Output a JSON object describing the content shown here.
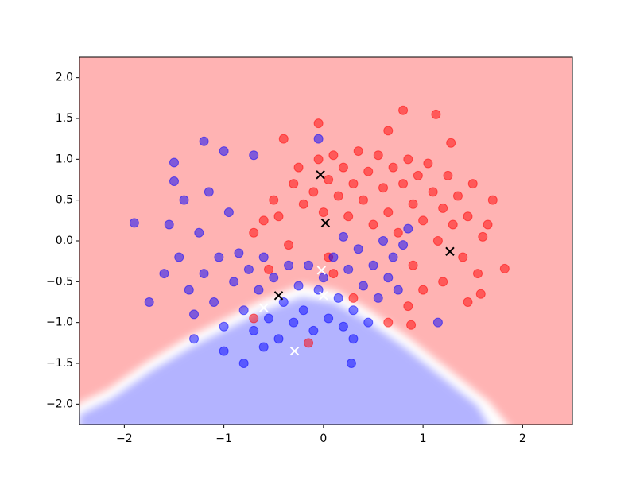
{
  "chart_data": {
    "type": "scatter",
    "xlim": [
      -2.45,
      2.5
    ],
    "ylim": [
      -2.25,
      2.25
    ],
    "xticks": [
      {
        "value": -2,
        "label": "−2"
      },
      {
        "value": -1,
        "label": "−1"
      },
      0,
      1,
      2
    ],
    "yticks": [
      {
        "value": 2,
        "label": "2.0"
      },
      {
        "value": 1.5,
        "label": "1.5"
      },
      {
        "value": 1,
        "label": "1.0"
      },
      {
        "value": 0.5,
        "label": "0.5"
      },
      {
        "value": 0,
        "label": "0.0"
      },
      {
        "value": -0.5,
        "label": "−0.5"
      },
      {
        "value": -1,
        "label": "−1.0"
      },
      {
        "value": -1.5,
        "label": "−1.5"
      },
      {
        "value": -2,
        "label": "−2.0"
      }
    ],
    "grid": false,
    "series": [
      {
        "color": "#ff0000",
        "marker": "o",
        "x": [
          0.8,
          1.13,
          -0.05,
          0.65,
          1.28,
          -0.4,
          1.82,
          1.65,
          1.7,
          1.58,
          1.45,
          0.88,
          0.65,
          0.3,
          -0.15,
          -0.7,
          0.1,
          -0.7,
          -0.6,
          -0.5,
          -0.45,
          -0.3,
          -0.25,
          -0.2,
          -0.1,
          -0.05,
          0.0,
          0.05,
          0.1,
          0.15,
          0.2,
          0.25,
          0.3,
          0.35,
          0.4,
          0.45,
          0.5,
          0.55,
          0.6,
          0.65,
          0.7,
          0.75,
          0.8,
          0.85,
          0.9,
          0.95,
          1.0,
          1.05,
          1.1,
          1.15,
          1.2,
          1.25,
          1.3,
          1.35,
          1.4,
          1.45,
          1.5,
          1.55,
          1.6,
          0.9,
          1.0,
          1.2,
          0.85,
          -0.35,
          -0.55,
          0.05
        ],
        "values": [
          1.6,
          1.55,
          1.44,
          1.35,
          1.2,
          1.25,
          -0.34,
          0.2,
          0.5,
          -0.65,
          -0.75,
          -1.03,
          -1.0,
          -0.7,
          -1.25,
          -0.95,
          -0.4,
          0.1,
          0.25,
          0.5,
          0.3,
          0.7,
          0.9,
          0.45,
          0.6,
          1.0,
          0.35,
          0.75,
          1.05,
          0.55,
          0.9,
          0.3,
          0.7,
          1.1,
          0.5,
          0.85,
          0.2,
          1.05,
          0.65,
          0.35,
          0.9,
          0.1,
          0.7,
          1.0,
          0.45,
          0.8,
          0.25,
          0.95,
          0.6,
          0.0,
          0.4,
          0.8,
          0.2,
          0.55,
          -0.2,
          0.3,
          0.7,
          -0.4,
          0.05,
          -0.3,
          -0.6,
          -0.5,
          -0.8,
          -0.05,
          -0.35,
          -0.2
        ]
      },
      {
        "color": "#0000ff",
        "marker": "o",
        "x": [
          -1.9,
          -1.5,
          -1.5,
          -1.2,
          -1.0,
          -0.7,
          -0.05,
          -0.8,
          -1.75,
          1.15,
          0.28,
          -1.6,
          -1.55,
          -1.45,
          -1.4,
          -1.35,
          -1.3,
          -1.25,
          -1.2,
          -1.15,
          -1.1,
          -1.05,
          -1.0,
          -0.95,
          -0.9,
          -0.85,
          -0.8,
          -0.75,
          -0.7,
          -0.65,
          -0.6,
          -0.55,
          -0.5,
          -0.45,
          -0.4,
          -0.35,
          -0.3,
          -0.25,
          -0.2,
          -0.15,
          -0.1,
          -0.05,
          0.0,
          0.05,
          0.1,
          0.15,
          0.2,
          0.25,
          0.3,
          0.35,
          0.4,
          0.45,
          0.5,
          0.55,
          0.6,
          0.65,
          0.7,
          0.75,
          0.8,
          0.85,
          0.2,
          -1.3,
          -1.0,
          -0.6,
          0.3
        ],
        "values": [
          0.22,
          0.96,
          0.73,
          1.22,
          1.1,
          1.05,
          1.25,
          -1.5,
          -0.75,
          -1.0,
          -1.5,
          -0.4,
          0.2,
          -0.2,
          0.5,
          -0.6,
          -0.9,
          0.1,
          -0.4,
          0.6,
          -0.75,
          -0.2,
          -1.05,
          0.35,
          -0.5,
          -0.15,
          -0.85,
          -0.35,
          -1.1,
          -0.6,
          -0.2,
          -0.95,
          -0.45,
          -1.2,
          -0.75,
          -0.3,
          -1.0,
          -0.55,
          -0.85,
          -0.3,
          -1.1,
          -0.6,
          -0.45,
          -0.95,
          -0.2,
          -0.7,
          -1.05,
          -0.35,
          -0.85,
          -0.1,
          -0.55,
          -1.0,
          -0.3,
          -0.7,
          0.0,
          -0.45,
          -0.2,
          -0.6,
          -0.05,
          0.15,
          0.05,
          -1.2,
          -1.35,
          -1.3,
          -1.2
        ]
      },
      {
        "color": "#000000",
        "marker": "x",
        "x": [
          -0.03,
          0.02,
          1.27,
          -0.45
        ],
        "values": [
          0.81,
          0.22,
          -0.13,
          -0.67
        ]
      },
      {
        "color": "#ffffff",
        "marker": "x",
        "x": [
          -0.02,
          0.0,
          -0.6,
          -0.29
        ],
        "values": [
          -0.36,
          -0.67,
          -0.82,
          -1.35
        ]
      }
    ]
  }
}
